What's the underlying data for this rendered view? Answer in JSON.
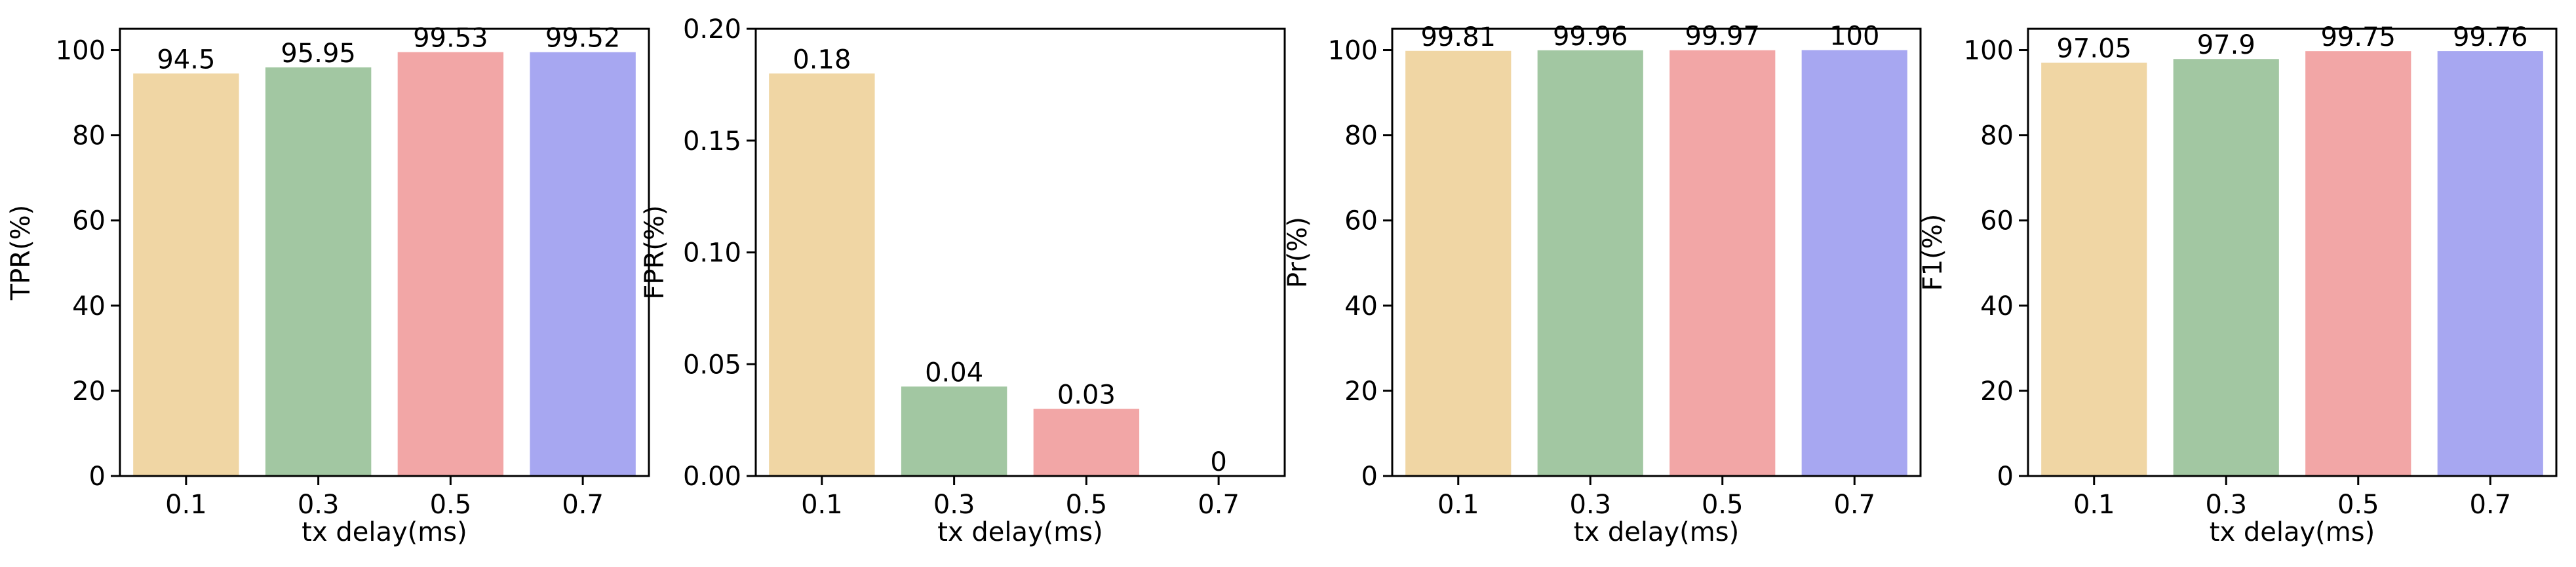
{
  "figure": {
    "colors": [
      "#f0d6a4",
      "#a2c7a2",
      "#f2a6a6",
      "#a7a7f1"
    ],
    "bar_label_sizes": [
      40,
      40,
      40,
      40
    ]
  },
  "chart_data": [
    {
      "type": "bar",
      "categories": [
        "0.1",
        "0.3",
        "0.5",
        "0.7"
      ],
      "values": [
        94.5,
        95.95,
        99.53,
        99.52
      ],
      "bar_labels": [
        "94.5",
        "95.95",
        "99.53",
        "99.52"
      ],
      "xlabel": "tx delay(ms)",
      "ylabel": "TPR(%)",
      "ylim": [
        0,
        105
      ],
      "yticks": [
        0,
        20,
        40,
        60,
        80,
        100
      ],
      "ytick_labels": [
        "0",
        "20",
        "40",
        "60",
        "80",
        "100"
      ],
      "grid": false,
      "legend": "none"
    },
    {
      "type": "bar",
      "categories": [
        "0.1",
        "0.3",
        "0.5",
        "0.7"
      ],
      "values": [
        0.18,
        0.04,
        0.03,
        0
      ],
      "bar_labels": [
        "0.18",
        "0.04",
        "0.03",
        "0"
      ],
      "xlabel": "tx delay(ms)",
      "ylabel": "FPR(%)",
      "ylim": [
        0,
        0.2
      ],
      "yticks": [
        0,
        0.05,
        0.1,
        0.15,
        0.2
      ],
      "ytick_labels": [
        "0.00",
        "0.05",
        "0.10",
        "0.15",
        "0.20"
      ],
      "grid": false,
      "legend": "none"
    },
    {
      "type": "bar",
      "categories": [
        "0.1",
        "0.3",
        "0.5",
        "0.7"
      ],
      "values": [
        99.81,
        99.96,
        99.97,
        100
      ],
      "bar_labels": [
        "99.81",
        "99.96",
        "99.97",
        "100"
      ],
      "xlabel": "tx delay(ms)",
      "ylabel": "Pr(%)",
      "ylim": [
        0,
        105
      ],
      "yticks": [
        0,
        20,
        40,
        60,
        80,
        100
      ],
      "ytick_labels": [
        "0",
        "20",
        "40",
        "60",
        "80",
        "100"
      ],
      "grid": false,
      "legend": "none"
    },
    {
      "type": "bar",
      "categories": [
        "0.1",
        "0.3",
        "0.5",
        "0.7"
      ],
      "values": [
        97.05,
        97.9,
        99.75,
        99.76
      ],
      "bar_labels": [
        "97.05",
        "97.9",
        "99.75",
        "99.76"
      ],
      "xlabel": "tx delay(ms)",
      "ylabel": "F1(%)",
      "ylim": [
        0,
        105
      ],
      "yticks": [
        0,
        20,
        40,
        60,
        80,
        100
      ],
      "ytick_labels": [
        "0",
        "20",
        "40",
        "60",
        "80",
        "100"
      ],
      "grid": false,
      "legend": "none"
    }
  ]
}
